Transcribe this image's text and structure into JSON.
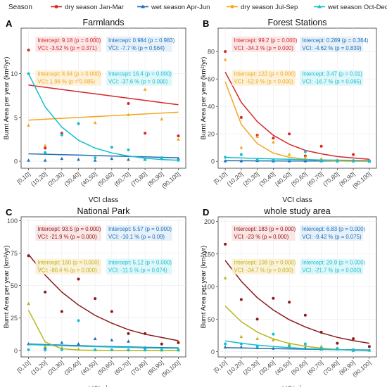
{
  "legend": {
    "title": "Season",
    "items": [
      {
        "label": "dry season Jan-Mar",
        "color": "#d62728"
      },
      {
        "label": "wet season Apr-Jun",
        "color": "#1f6fb4"
      },
      {
        "label": "dry season Jul-Sep",
        "color": "#f2a81d"
      },
      {
        "label": "wet season Oct-Dec",
        "color": "#17becf"
      }
    ]
  },
  "chart_data": [
    {
      "type": "scatter",
      "panel_letter": "A",
      "title": "Farmlands",
      "xlabel": "VCI class",
      "ylabel": "Burnt Area per year (km²/yr)",
      "categories": [
        "[0,10]",
        "(10,20]",
        "(20,30]",
        "(30,40]",
        "(40,50]",
        "(50,60]",
        "(60,70]",
        "(70,80]",
        "(80,90]",
        "(90,100]"
      ],
      "ylim": [
        -0.8,
        15.2
      ],
      "yticks": [
        0,
        5,
        10
      ],
      "series": [
        {
          "name": "dry season Jan-Mar",
          "color": "#d62728",
          "marker": "dot",
          "points": [
            12.7,
            1.5,
            3.2,
            9.3,
            14.1,
            13.2,
            6.6,
            3.2,
            9.0,
            2.9
          ],
          "fit": [
            8.7,
            8.45,
            8.2,
            7.95,
            7.7,
            7.45,
            7.2,
            6.95,
            6.7,
            6.45
          ],
          "annotations": [
            "Intercept: 9.18 (p = 0.000)",
            "VCI: -3.52 % (p = 0.371)"
          ]
        },
        {
          "name": "wet season Apr-Jun",
          "color": "#1f6fb4",
          "marker": "triangle",
          "points": [
            0.1,
            0.1,
            0.3,
            0.2,
            0.1,
            0.3,
            0.2,
            0.2,
            0.4,
            0.3
          ],
          "fit": [
            0.85,
            0.8,
            0.75,
            0.7,
            0.65,
            0.6,
            0.55,
            0.5,
            0.45,
            0.4
          ],
          "annotations": [
            "Intercept: 0.984 (p = 0.983)",
            "VCI: -7.7 % (p = 0.564)"
          ]
        },
        {
          "name": "dry season Jul-Sep",
          "color": "#f2a81d",
          "marker": "triangle",
          "points": [
            4.1,
            1.8,
            10.2,
            4.3,
            4.4,
            8.8,
            5.3,
            8.2,
            4.8,
            2.5
          ],
          "fit": [
            4.7,
            4.8,
            4.9,
            5.0,
            5.1,
            5.2,
            5.3,
            5.4,
            5.5,
            5.6
          ],
          "annotations": [
            "Intercept: 4.64 (p = 0.000)",
            "VCI: 1.96 % (p = 0.685)"
          ]
        },
        {
          "name": "wet season Oct-Dec",
          "color": "#17becf",
          "marker": "dot",
          "points": [
            10.0,
            1.0,
            3.0,
            4.3,
            0.4,
            1.6,
            1.3,
            0.2,
            0.4,
            0.1
          ],
          "fit": [
            10.0,
            6.2,
            3.9,
            2.4,
            1.5,
            0.95,
            0.6,
            0.35,
            0.2,
            0.12
          ],
          "annotations": [
            "Intercept: 16.4 (p = 0.000)",
            "VCI: -37.6 % (p = 0.000)"
          ]
        }
      ]
    },
    {
      "type": "scatter",
      "panel_letter": "B",
      "title": "Forest Stations",
      "xlabel": "VCI class",
      "ylabel": "Burnt Area per year (km²/yr)",
      "categories": [
        "[0,10]",
        "(10,20]",
        "(20,30]",
        "(30,40]",
        "(40,50]",
        "(50,60]",
        "(60,70]",
        "(70,80]",
        "(80,90]",
        "(90,100]"
      ],
      "ylim": [
        -5,
        97
      ],
      "yticks": [
        0,
        20,
        40,
        60,
        80
      ],
      "series": [
        {
          "name": "dry season Jan-Mar",
          "color": "#d62728",
          "marker": "dot",
          "points": [
            80,
            32,
            19,
            17,
            20,
            4,
            11,
            0.5,
            5,
            0.5
          ],
          "fit": [
            65,
            43,
            29,
            19,
            12.5,
            8,
            5.5,
            3.5,
            2.5,
            1.5
          ],
          "annotations": [
            "Intercept: 99.2 (p = 0.000)",
            "VCI: -34.3 % (p = 0.000)"
          ]
        },
        {
          "name": "wet season Apr-Jun",
          "color": "#1f6fb4",
          "marker": "triangle",
          "points": [
            0.3,
            0.3,
            0.5,
            0.2,
            0.3,
            0.3,
            0.3,
            0.2,
            0.2,
            0.1
          ],
          "fit": [
            0.5,
            0.45,
            0.4,
            0.35,
            0.3,
            0.27,
            0.24,
            0.21,
            0.18,
            0.15
          ],
          "annotations": [
            "Intercept: 0.289 (p = 0.364)",
            "VCI: -4.62 % (p = 0.839)"
          ]
        },
        {
          "name": "dry season Jul-Sep",
          "color": "#f2a81d",
          "marker": "triangle",
          "points": [
            74,
            10,
            18,
            14,
            5,
            3,
            2,
            1,
            0.5,
            0.5
          ],
          "fit": [
            58,
            27,
            13,
            6,
            3,
            1.5,
            0.7,
            0.3,
            0.15,
            0.1
          ],
          "annotations": [
            "Intercept: 122 (p = 0.000)",
            "VCI: -52.9 % (p = 0.000)"
          ]
        },
        {
          "name": "wet season Oct-Dec",
          "color": "#17becf",
          "marker": "dot",
          "points": [
            3,
            5,
            1,
            1,
            1,
            7,
            0.5,
            0.5,
            0.5,
            0.3
          ],
          "fit": [
            2.9,
            2.5,
            2.1,
            1.8,
            1.5,
            1.25,
            1.05,
            0.9,
            0.75,
            0.6
          ],
          "annotations": [
            "Intercept: 3.47 (p = 0.01)",
            "VCI: -16.7 % (p = 0.065)"
          ]
        }
      ]
    },
    {
      "type": "scatter",
      "panel_letter": "C",
      "title": "National Park",
      "xlabel": "VCI class",
      "ylabel": "Burnt Area per year (km²/yr)",
      "categories": [
        "[0,10]",
        "(10,20]",
        "(20,30]",
        "(30,40]",
        "(40,50]",
        "(50,60]",
        "(60,70]",
        "(70,80]",
        "(80,90]",
        "(90,100]"
      ],
      "ylim": [
        -5,
        103
      ],
      "yticks": [
        0,
        25,
        50,
        75,
        100
      ],
      "series": [
        {
          "name": "dry season Jan-Mar",
          "color": "#8b1a1a",
          "marker": "dot",
          "points": [
            73,
            45,
            30,
            55,
            40,
            30,
            13,
            13,
            5,
            6
          ],
          "fit": [
            74,
            58,
            45,
            35,
            27,
            21,
            16,
            12.5,
            10,
            7.5
          ],
          "annotations": [
            "Intercept: 93.5 (p = 0.000)",
            "VCI: -21.9 % (p = 0.000)"
          ]
        },
        {
          "name": "wet season Apr-Jun",
          "color": "#1f6fb4",
          "marker": "triangle",
          "points": [
            5,
            2,
            6,
            5,
            9,
            8,
            7,
            2,
            1,
            1
          ],
          "fit": [
            5.0,
            4.5,
            4.1,
            3.7,
            3.3,
            3.0,
            2.7,
            2.4,
            2.2,
            2.0
          ],
          "annotations": [
            "Intercept: 5.57 (p = 0.000)",
            "VCI: -10.1 % (p = 0.09)"
          ]
        },
        {
          "name": "dry season Jul-Sep",
          "color": "#b8b61c",
          "marker": "triangle",
          "points": [
            36,
            3,
            2,
            1,
            0.5,
            0.5,
            0.3,
            0.3,
            0.2,
            0.2
          ],
          "fit": [
            31,
            6.5,
            1.3,
            0.3,
            0.1,
            0.05,
            0.02,
            0.01,
            0.01,
            0.01
          ],
          "annotations": [
            "Intercept: 160 (p = 0.000)",
            "VCI: -80.4 % (p = 0.000)"
          ]
        },
        {
          "name": "wet season Oct-Dec",
          "color": "#17becf",
          "marker": "dot",
          "points": [
            0.5,
            0.3,
            0.5,
            23,
            0.5,
            0.5,
            0.3,
            0.3,
            0.3,
            0.3
          ],
          "fit": [
            4.5,
            4.1,
            3.7,
            3.3,
            2.9,
            2.6,
            2.3,
            2.0,
            1.8,
            1.6
          ],
          "annotations": [
            "Intercept: 5.12 (p = 0.000)",
            "VCI: -11.5 % (p = 0.074)"
          ]
        }
      ]
    },
    {
      "type": "scatter",
      "panel_letter": "D",
      "title": "whole study area",
      "xlabel": "VCI class",
      "ylabel": "Burnt Area per year (km²/yr)",
      "categories": [
        "[0,10]",
        "(10,20]",
        "(20,30]",
        "(30,40]",
        "(40,50]",
        "(50,60]",
        "(60,70]",
        "(70,80]",
        "(80,90]",
        "(90,100]"
      ],
      "ylim": [
        -8,
        207
      ],
      "yticks": [
        0,
        50,
        100,
        150,
        200
      ],
      "series": [
        {
          "name": "dry season Jan-Mar",
          "color": "#8b1a1a",
          "marker": "dot",
          "points": [
            165,
            80,
            50,
            82,
            76,
            56,
            30,
            13,
            20,
            8
          ],
          "fit": [
            140,
            108,
            83,
            64,
            49,
            38,
            29,
            22,
            17,
            13
          ],
          "annotations": [
            "Intercept: 183 (p = 0.000)",
            "VCI: -23 % (p = 0.000)"
          ]
        },
        {
          "name": "wet season Apr-Jun",
          "color": "#1f6fb4",
          "marker": "triangle",
          "points": [
            7,
            7,
            6,
            5,
            10,
            6,
            4,
            4,
            2,
            2
          ],
          "fit": [
            6.2,
            5.7,
            5.2,
            4.7,
            4.3,
            3.9,
            3.5,
            3.2,
            2.9,
            2.6
          ],
          "annotations": [
            "Intercept: 6.83 (p = 0.000)",
            "VCI: -9.42 % (p = 0.075)"
          ]
        },
        {
          "name": "dry season Jul-Sep",
          "color": "#b8b61c",
          "marker": "triangle",
          "points": [
            113,
            23,
            20,
            18,
            12,
            10,
            8,
            5,
            3,
            2
          ],
          "fit": [
            70,
            46,
            30,
            19.5,
            12.7,
            8.3,
            5.4,
            3.5,
            2.3,
            1.5
          ],
          "annotations": [
            "Intercept: 108 (p = 0.000)",
            "VCI: -34.7 % (p = 0.000)"
          ]
        },
        {
          "name": "wet season Oct-Dec",
          "color": "#17becf",
          "marker": "dot",
          "points": [
            12,
            12,
            8,
            27,
            8,
            12,
            5,
            5,
            3,
            2
          ],
          "fit": [
            16.5,
            13,
            10.2,
            8,
            6.3,
            4.9,
            3.9,
            3.0,
            2.4,
            1.9
          ],
          "annotations": [
            "Intercept: 20.9 (p = 0.000)",
            "VCI: -21.7 % (p = 0.000)"
          ]
        }
      ]
    }
  ]
}
